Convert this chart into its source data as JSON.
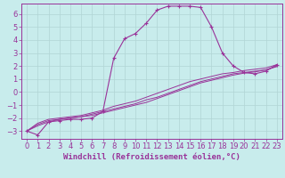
{
  "xlabel": "Windchill (Refroidissement éolien,°C)",
  "background_color": "#c8ecec",
  "grid_color": "#b0d4d4",
  "line_color": "#993399",
  "xlim": [
    -0.5,
    23.5
  ],
  "ylim": [
    -3.6,
    6.8
  ],
  "xticks": [
    0,
    1,
    2,
    3,
    4,
    5,
    6,
    7,
    8,
    9,
    10,
    11,
    12,
    13,
    14,
    15,
    16,
    17,
    18,
    19,
    20,
    21,
    22,
    23
  ],
  "yticks": [
    -3,
    -2,
    -1,
    0,
    1,
    2,
    3,
    4,
    5,
    6
  ],
  "hours": [
    0,
    1,
    2,
    3,
    4,
    5,
    6,
    7,
    8,
    9,
    10,
    11,
    12,
    13,
    14,
    15,
    16,
    17,
    18,
    19,
    20,
    21,
    22,
    23
  ],
  "temp_curve": [
    -3.0,
    -3.3,
    -2.3,
    -2.2,
    -2.1,
    -2.1,
    -2.0,
    -1.5,
    2.6,
    4.1,
    4.5,
    5.3,
    6.3,
    6.6,
    6.6,
    6.6,
    6.5,
    5.0,
    3.0,
    2.0,
    1.5,
    1.4,
    1.6,
    2.1
  ],
  "linear1": [
    -3.0,
    -2.5,
    -2.2,
    -2.1,
    -2.0,
    -1.9,
    -1.7,
    -1.5,
    -1.3,
    -1.1,
    -0.9,
    -0.6,
    -0.4,
    -0.1,
    0.2,
    0.5,
    0.8,
    1.0,
    1.2,
    1.4,
    1.5,
    1.6,
    1.7,
    2.0
  ],
  "linear2": [
    -3.0,
    -2.6,
    -2.3,
    -2.1,
    -2.0,
    -1.9,
    -1.8,
    -1.6,
    -1.4,
    -1.2,
    -1.0,
    -0.8,
    -0.5,
    -0.2,
    0.1,
    0.4,
    0.7,
    0.9,
    1.1,
    1.3,
    1.45,
    1.55,
    1.7,
    1.95
  ],
  "linear3": [
    -3.0,
    -2.4,
    -2.1,
    -2.0,
    -1.9,
    -1.8,
    -1.6,
    -1.4,
    -1.1,
    -0.9,
    -0.7,
    -0.4,
    -0.1,
    0.2,
    0.5,
    0.8,
    1.0,
    1.2,
    1.4,
    1.5,
    1.65,
    1.75,
    1.85,
    2.1
  ],
  "xlabel_fontsize": 6.5,
  "tick_fontsize": 6
}
